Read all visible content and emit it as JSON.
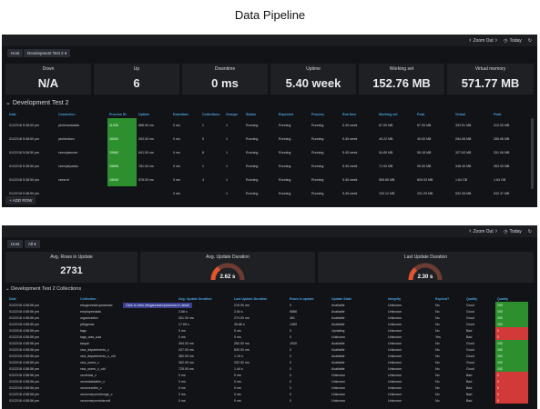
{
  "page_title": "Data Pipeline",
  "p1": {
    "topbar": {
      "zoom_out": "Zoom Out",
      "time_label": "Today"
    },
    "chips": {
      "home": "Host",
      "dashboard": "Development Test 2 ▾"
    },
    "stats": [
      {
        "label": "Down",
        "value": "N/A"
      },
      {
        "label": "Up",
        "value": "6"
      },
      {
        "label": "Downtime",
        "value": "0 ms"
      },
      {
        "label": "Uptime",
        "value": "5.40 week"
      },
      {
        "label": "Working set",
        "value": "152.76 MB"
      },
      {
        "label": "Virtual memory",
        "value": "571.77 MB"
      }
    ],
    "section_title": "Development Test 2",
    "columns": [
      "Date",
      "Connector ↓",
      "Process ID",
      "Uptime",
      "Downtime",
      "Collections",
      "Groups",
      "Status",
      "Expected",
      "Process",
      "Run time",
      "Working set",
      "Peak",
      "Virtual",
      "Peak"
    ],
    "rows": [
      [
        "01/22/18 5:38:50 pm",
        "ptolhmetadata",
        "11936",
        "688.00 ms",
        "0 ms",
        "1",
        "1",
        "Running",
        "Running",
        "Running",
        "5.45 week",
        "67.05 MB",
        "67.05 MB",
        "333.51 MB",
        "312.93 MB"
      ],
      [
        "01/22/18 5:38:50 pm",
        "ptolhedium",
        "16000",
        "263.00 ms",
        "0 ms",
        "9",
        "1",
        "Running",
        "Running",
        "Running",
        "5.45 week",
        "49.22 MB",
        "49.63 MB",
        "284.08 MB",
        "285.96 MB"
      ],
      [
        "01/22/18 5:38:50 pm",
        "vservplserver",
        "15960",
        "641.00 ms",
        "0 ms",
        "8",
        "1",
        "Running",
        "Running",
        "Running",
        "5.45 week",
        "54.85 MB",
        "55.18 MB",
        "327.63 MB",
        "331.06 MB"
      ],
      [
        "01/22/18 5:38:50 pm",
        "vservplrpacks",
        "15896",
        "781.00 ms",
        "0 ms",
        "1",
        "1",
        "Running",
        "Running",
        "Running",
        "5.45 week",
        "71.93 MB",
        "99.53 MB",
        "348.45 MB",
        "353.93 MB"
      ],
      [
        "01/22/18 5:38:50 pm",
        "vsevrrd",
        "15940",
        "578.00 ms",
        "0 ms",
        "4",
        "1",
        "Running",
        "Running",
        "Running",
        "5.45 week",
        "565.86 MB",
        "609.53 MB",
        "1.64 GB",
        "1.64 GB"
      ],
      [
        "01/22/18 5:38:50 pm",
        "",
        "",
        "",
        "0 ms",
        "",
        "1",
        "Running",
        "Running",
        "Running",
        "5.45 week",
        "193.12 MB",
        "201.25 MB",
        "532.08 MB",
        "532.37 MB"
      ]
    ],
    "add_row": "+ ADD ROW"
  },
  "p2": {
    "topbar": {
      "zoom_out": "Zoom Out",
      "time_label": "Today"
    },
    "chips": {
      "home": "Host",
      "filter": "All ▾"
    },
    "stats": [
      {
        "label": "Avg. Rows in Update",
        "value": "2731"
      },
      {
        "label": "Avg. Update Duration",
        "value": "2.62 s",
        "fraction": 0.3
      },
      {
        "label": "Last Update Duration",
        "value": "2.30 s",
        "fraction": 0.27
      }
    ],
    "section_title": "Development Test 2 Collections",
    "tooltip": "Click to view ebsgsnrswkvparamaiv in detail",
    "columns": [
      "Date",
      "Collection ↓",
      "Avg. Update Duration",
      "Last Update Duration",
      "Rows in update",
      "Update State",
      "Integrity",
      "Expired?",
      "Quality",
      "Quality"
    ],
    "rows": [
      [
        "01/22/18 4:58:56 pm",
        "ebsgsnrswkvparamaiv",
        "",
        "219.00 ms",
        "0",
        "Available",
        "Unknown",
        "No",
        "Good",
        "192",
        "g"
      ],
      [
        "01/22/18 4:58:56 pm",
        "employeedata",
        "2.66 s",
        "2.64 s",
        "9866",
        "Available",
        "Unknown",
        "No",
        "Good",
        "192",
        "g"
      ],
      [
        "01/22/18 4:58:56 pm",
        "organization",
        "261.00 ms",
        "274.00 ms",
        "481",
        "Available",
        "Unknown",
        "No",
        "Good",
        "192",
        "g"
      ],
      [
        "01/22/18 4:58:56 pm",
        "ptlagsrow",
        "17.65 s",
        "35.86 s",
        "1369",
        "Available",
        "Unknown",
        "No",
        "Good",
        "192",
        "g"
      ],
      [
        "01/22/18 4:58:56 pm",
        "tags",
        "0 ms",
        "0 ms",
        "0",
        "Updating",
        "Unknown",
        "No",
        "Bad",
        "0",
        "r"
      ],
      [
        "01/22/18 4:58:56 pm",
        "tags_was_uaa",
        "0 ms",
        "0 ms",
        "0",
        "Unknown",
        "Unknown",
        "Yes",
        "Bad",
        "0",
        "r"
      ],
      [
        "01/22/18 4:58:56 pm",
        "taspal",
        "264.00 ms",
        "282.00 ms",
        "1000",
        "Available",
        "Unknown",
        "No",
        "Good",
        "192",
        "g"
      ],
      [
        "01/22/18 4:58:56 pm",
        "vsw_departments_c",
        "437.00 ms",
        "830.00 ms",
        "0",
        "Available",
        "Unknown",
        "No",
        "Good",
        "192",
        "g"
      ],
      [
        "01/22/18 4:58:56 pm",
        "vsw_departments_c_old",
        "382.00 ms",
        "1.19 s",
        "0",
        "Available",
        "Unknown",
        "No",
        "Good",
        "192",
        "g"
      ],
      [
        "01/22/18 4:58:56 pm",
        "vsw_users_c",
        "362.00 ms",
        "202.00 ms",
        "0",
        "Available",
        "Unknown",
        "No",
        "Good",
        "192",
        "g"
      ],
      [
        "01/22/18 4:58:56 pm",
        "vsw_users_c_old",
        "725.00 ms",
        "1.44 s",
        "0",
        "Available",
        "Unknown",
        "No",
        "Good",
        "192",
        "g"
      ],
      [
        "01/22/18 4:58:56 pm",
        "vsnrelaxi_c",
        "0 ms",
        "0 ms",
        "0",
        "Unknown",
        "Unknown",
        "No",
        "Bad",
        "0",
        "r"
      ],
      [
        "01/22/18 4:58:56 pm",
        "vsnrelaxldafrm_c",
        "0 ms",
        "0 ms",
        "0",
        "Unknown",
        "Unknown",
        "No",
        "Bad",
        "0",
        "r"
      ],
      [
        "01/22/18 4:58:56 pm",
        "vsnrcreadtm_c",
        "0 ms",
        "0 ms",
        "0",
        "Unknown",
        "Unknown",
        "No",
        "Bad",
        "0",
        "r"
      ],
      [
        "01/22/18 4:58:56 pm",
        "vsnrcmsrprmdmnge_c",
        "0 ms",
        "0 ms",
        "0",
        "Unknown",
        "Unknown",
        "No",
        "Bad",
        "0",
        "r"
      ],
      [
        "01/22/18 4:58:56 pm",
        "vsnrcmsrprmrstsrrrdt",
        "0 ms",
        "0 ms",
        "0",
        "Unknown",
        "Unknown",
        "No",
        "Bad",
        "0",
        "r"
      ]
    ]
  }
}
